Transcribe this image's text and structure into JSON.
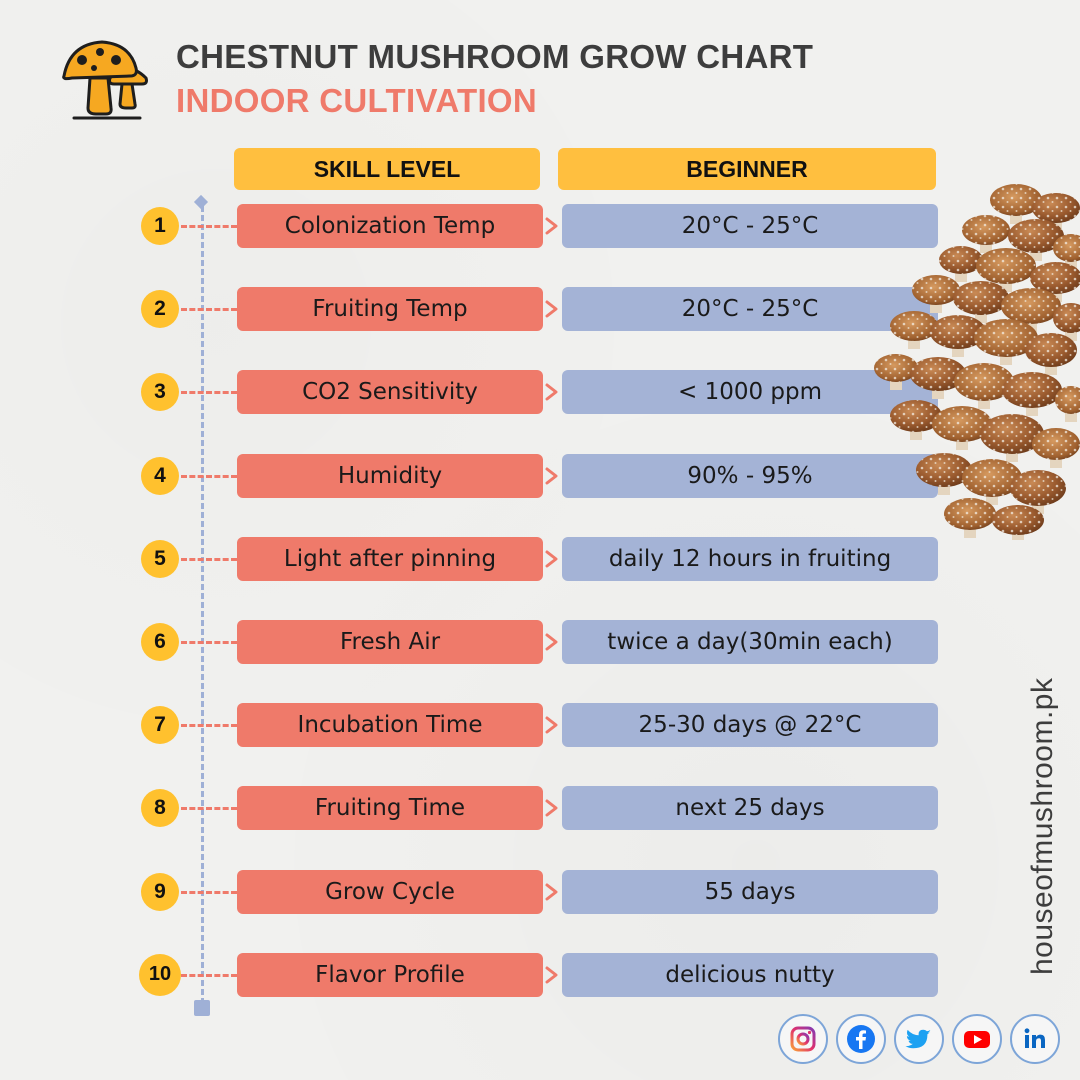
{
  "header": {
    "title": "CHESTNUT MUSHROOM GROW CHART",
    "subtitle": "INDOOR CULTIVATION",
    "logo_icon": "mushroom-logo-icon"
  },
  "table": {
    "col_left": "SKILL LEVEL",
    "col_right": "BEGINNER",
    "rows": [
      {
        "num": "1",
        "label": "Colonization Temp",
        "value": "20°C - 25°C"
      },
      {
        "num": "2",
        "label": "Fruiting Temp",
        "value": "20°C - 25°C"
      },
      {
        "num": "3",
        "label": "CO2 Sensitivity",
        "value": "< 1000 ppm"
      },
      {
        "num": "4",
        "label": "Humidity",
        "value": "90% - 95%"
      },
      {
        "num": "5",
        "label": "Light after pinning",
        "value": "daily 12 hours in fruiting"
      },
      {
        "num": "6",
        "label": "Fresh Air",
        "value": "twice a day(30min each)"
      },
      {
        "num": "7",
        "label": "Incubation Time",
        "value": "25-30 days @ 22°C"
      },
      {
        "num": "8",
        "label": "Fruiting Time",
        "value": "next 25 days"
      },
      {
        "num": "9",
        "label": "Grow Cycle",
        "value": "55 days"
      },
      {
        "num": "10",
        "label": "Flavor Profile",
        "value": "delicious nutty"
      }
    ]
  },
  "website": "houseofmushroom.pk",
  "social": [
    "instagram-icon",
    "facebook-icon",
    "twitter-icon",
    "youtube-icon",
    "linkedin-icon"
  ],
  "colors": {
    "accent_yellow": "#ffbf3f",
    "label_coral": "#ef7a6a",
    "value_blue": "#a4b3d6",
    "title_gray": "#3d3d3d"
  }
}
